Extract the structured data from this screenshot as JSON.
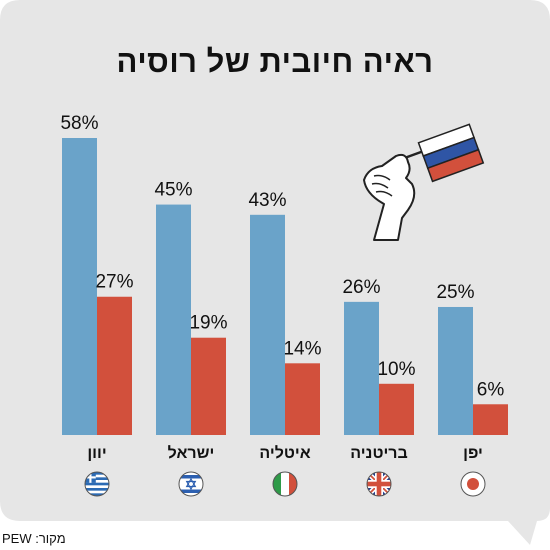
{
  "chart_data": {
    "type": "bar",
    "title": "ראיה חיובית של רוסיה",
    "categories": [
      "יוון",
      "ישראל",
      "איטליה",
      "בריטניה",
      "יפן"
    ],
    "series": [
      {
        "values": [
          58,
          45,
          43,
          26,
          25
        ],
        "labels": [
          "58%",
          "45%",
          "43%",
          "26%",
          "25%"
        ],
        "color": "#6aa3c9"
      },
      {
        "values": [
          27,
          19,
          14,
          10,
          6
        ],
        "labels": [
          "27%",
          "19%",
          "14%",
          "10%",
          "6%"
        ],
        "color": "#d2503c"
      }
    ],
    "flags": [
      "greece-flag-icon",
      "israel-flag-icon",
      "italy-flag-icon",
      "uk-flag-icon",
      "japan-flag-icon"
    ],
    "ylim": [
      0,
      58
    ],
    "grid": false,
    "legend": "none"
  },
  "source": "מקור: PEW",
  "colors": {
    "background": "#e6e6e6",
    "blue": "#6aa3c9",
    "red": "#d2503c"
  }
}
